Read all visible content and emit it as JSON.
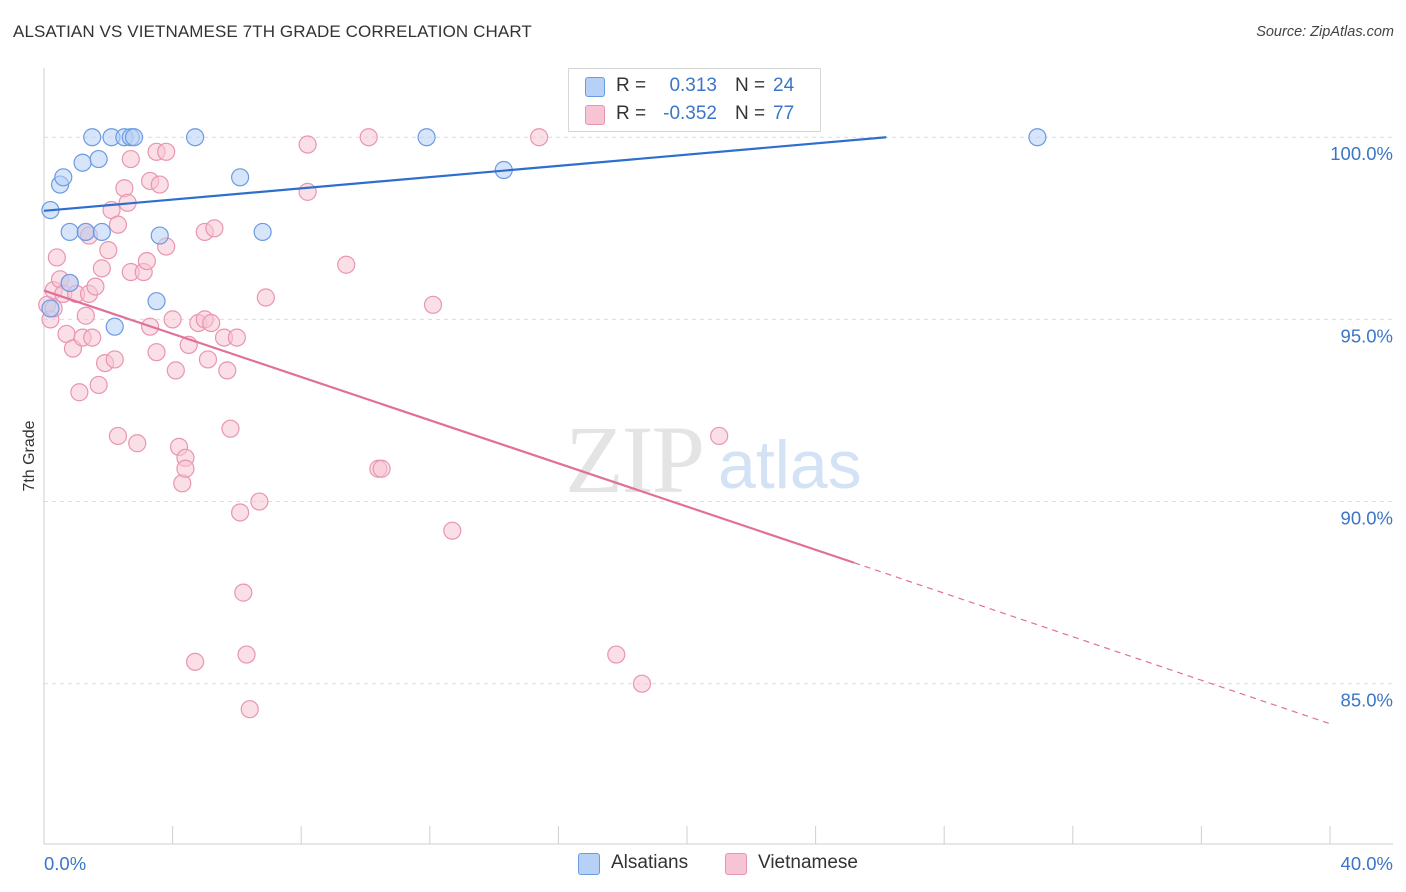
{
  "title": "ALSATIAN VS VIETNAMESE 7TH GRADE CORRELATION CHART",
  "source": "Source: ZipAtlas.com",
  "watermark": {
    "zip": "ZIP",
    "atlas": "atlas"
  },
  "colors": {
    "blue_fill": "#b7d0f5",
    "blue_stroke": "#6b9be0",
    "blue_line": "#2e6fcd",
    "pink_fill": "#f7c4d4",
    "pink_stroke": "#e895b1",
    "pink_line": "#e0709a",
    "axis_label": "#3b75c8",
    "grid": "#dcdcdc"
  },
  "legend": {
    "rows": [
      {
        "r_label": "R =",
        "r_value": "0.313",
        "n_label": "N =",
        "n_value": "24"
      },
      {
        "r_label": "R =",
        "r_value": "-0.352",
        "n_label": "N =",
        "n_value": "77"
      }
    ]
  },
  "bottom_legend": [
    "Alsatians",
    "Vietnamese"
  ],
  "chart_data": {
    "type": "scatter",
    "title": "ALSATIAN VS VIETNAMESE 7TH GRADE CORRELATION CHART",
    "xlabel": "",
    "ylabel": "7th Grade",
    "xlim": [
      0,
      40
    ],
    "ylim": [
      80.6,
      101.9
    ],
    "x_tick_labels": [
      "0.0%",
      "40.0%"
    ],
    "y_ticks": [
      85,
      90,
      95,
      100
    ],
    "y_tick_labels": [
      "85.0%",
      "90.0%",
      "95.0%",
      "100.0%"
    ],
    "grid": true,
    "series": [
      {
        "name": "Alsatians",
        "r": 0.313,
        "n": 24,
        "points": [
          [
            0.2,
            98.0
          ],
          [
            0.5,
            98.7
          ],
          [
            0.6,
            98.9
          ],
          [
            0.8,
            97.4
          ],
          [
            0.8,
            96.0
          ],
          [
            1.2,
            99.3
          ],
          [
            1.3,
            97.4
          ],
          [
            1.5,
            100.0
          ],
          [
            1.7,
            99.4
          ],
          [
            1.8,
            97.4
          ],
          [
            2.1,
            100.0
          ],
          [
            2.2,
            94.8
          ],
          [
            2.5,
            100.0
          ],
          [
            2.7,
            100.0
          ],
          [
            2.8,
            100.0
          ],
          [
            3.5,
            95.5
          ],
          [
            3.6,
            97.3
          ],
          [
            4.7,
            100.0
          ],
          [
            6.1,
            98.9
          ],
          [
            6.8,
            97.4
          ],
          [
            11.9,
            100.0
          ],
          [
            14.3,
            99.1
          ],
          [
            30.9,
            100.0
          ],
          [
            0.2,
            95.3
          ]
        ],
        "trend": {
          "x0": 0.0,
          "y0": 97.98,
          "x1": 26.2,
          "y1": 100.0
        }
      },
      {
        "name": "Vietnamese",
        "r": -0.352,
        "n": 77,
        "points": [
          [
            0.1,
            95.4
          ],
          [
            0.2,
            95.0
          ],
          [
            0.3,
            95.8
          ],
          [
            0.4,
            96.7
          ],
          [
            0.5,
            96.1
          ],
          [
            0.6,
            95.7
          ],
          [
            0.7,
            94.6
          ],
          [
            0.8,
            96.0
          ],
          [
            0.9,
            94.2
          ],
          [
            1.0,
            95.7
          ],
          [
            1.1,
            93.0
          ],
          [
            1.2,
            94.5
          ],
          [
            1.3,
            97.4
          ],
          [
            1.3,
            95.1
          ],
          [
            1.4,
            97.3
          ],
          [
            1.4,
            95.7
          ],
          [
            1.5,
            94.5
          ],
          [
            1.6,
            95.9
          ],
          [
            1.7,
            93.2
          ],
          [
            1.8,
            96.4
          ],
          [
            1.9,
            93.8
          ],
          [
            2.0,
            96.9
          ],
          [
            2.1,
            98.0
          ],
          [
            2.2,
            93.9
          ],
          [
            2.3,
            97.6
          ],
          [
            2.3,
            91.8
          ],
          [
            2.5,
            98.6
          ],
          [
            2.6,
            98.2
          ],
          [
            2.7,
            99.4
          ],
          [
            2.7,
            96.3
          ],
          [
            2.9,
            91.6
          ],
          [
            3.1,
            96.3
          ],
          [
            3.2,
            96.6
          ],
          [
            3.3,
            98.8
          ],
          [
            3.3,
            94.8
          ],
          [
            3.5,
            99.6
          ],
          [
            3.5,
            94.1
          ],
          [
            3.6,
            98.7
          ],
          [
            3.8,
            97.0
          ],
          [
            3.8,
            99.6
          ],
          [
            4.0,
            95.0
          ],
          [
            4.1,
            93.6
          ],
          [
            4.2,
            91.5
          ],
          [
            4.3,
            90.5
          ],
          [
            4.4,
            91.2
          ],
          [
            4.4,
            90.9
          ],
          [
            4.5,
            94.3
          ],
          [
            4.7,
            85.6
          ],
          [
            4.8,
            94.9
          ],
          [
            5.0,
            97.4
          ],
          [
            5.0,
            95.0
          ],
          [
            5.1,
            93.9
          ],
          [
            5.2,
            94.9
          ],
          [
            5.3,
            97.5
          ],
          [
            5.6,
            94.5
          ],
          [
            5.7,
            93.6
          ],
          [
            5.8,
            92.0
          ],
          [
            6.0,
            94.5
          ],
          [
            6.1,
            89.7
          ],
          [
            6.2,
            87.5
          ],
          [
            6.3,
            85.8
          ],
          [
            6.4,
            84.3
          ],
          [
            6.7,
            90.0
          ],
          [
            6.9,
            95.6
          ],
          [
            8.2,
            99.8
          ],
          [
            8.2,
            98.5
          ],
          [
            9.4,
            96.5
          ],
          [
            10.1,
            100.0
          ],
          [
            10.4,
            90.9
          ],
          [
            10.5,
            90.9
          ],
          [
            12.1,
            95.4
          ],
          [
            12.7,
            89.2
          ],
          [
            15.4,
            100.0
          ],
          [
            17.8,
            85.8
          ],
          [
            18.6,
            85.0
          ],
          [
            21.0,
            91.8
          ],
          [
            0.3,
            95.3
          ]
        ],
        "trend": {
          "x0": 0.0,
          "y0": 95.79,
          "x1": 25.2,
          "y1": 88.32
        },
        "trend_dashed": {
          "x0": 25.2,
          "y0": 88.32,
          "x1": 40.0,
          "y1": 83.9
        }
      }
    ]
  }
}
